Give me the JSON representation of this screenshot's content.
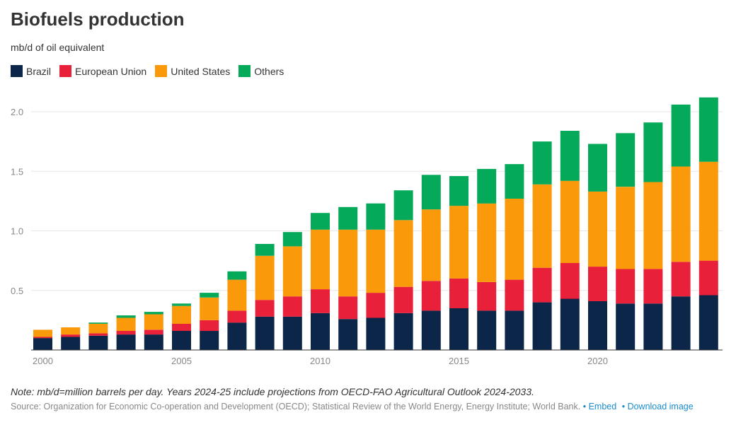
{
  "header": {
    "title": "Biofuels production",
    "subtitle": "mb/d of oil equivalent"
  },
  "footer": {
    "note": "Note: mb/d=million barrels per day. Years 2024-25 include projections from OECD-FAO Agricultural Outlook 2024-2033.",
    "source": "Source: Organization for Economic Co-operation and Development (OECD); Statistical Review of the World Energy, Energy Institute; World Bank.",
    "embed_label": "Embed",
    "download_label": "Download image",
    "separator": "•"
  },
  "chart_data": {
    "type": "bar",
    "stacked": true,
    "title": "Biofuels production",
    "subtitle": "mb/d of oil equivalent",
    "xlabel": "",
    "ylabel": "",
    "ylim": [
      0,
      2.2
    ],
    "yticks": [
      0.5,
      1.0,
      1.5,
      2.0
    ],
    "ytick_labels": [
      "0.5",
      "1.0",
      "1.5",
      "2.0"
    ],
    "xticks": [
      2000,
      2005,
      2010,
      2015,
      2020
    ],
    "grid": true,
    "legend_position": "top-left",
    "categories": [
      2000,
      2001,
      2002,
      2003,
      2004,
      2005,
      2006,
      2007,
      2008,
      2009,
      2010,
      2011,
      2012,
      2013,
      2014,
      2015,
      2016,
      2017,
      2018,
      2019,
      2020,
      2021,
      2022,
      2023,
      2024
    ],
    "series": [
      {
        "name": "Brazil",
        "color": "#0b2649",
        "values": [
          0.1,
          0.11,
          0.12,
          0.13,
          0.13,
          0.16,
          0.16,
          0.23,
          0.28,
          0.28,
          0.31,
          0.26,
          0.27,
          0.31,
          0.33,
          0.35,
          0.33,
          0.33,
          0.4,
          0.43,
          0.41,
          0.39,
          0.39,
          0.45,
          0.46
        ]
      },
      {
        "name": "European Union",
        "color": "#e8203a",
        "values": [
          0.01,
          0.02,
          0.02,
          0.03,
          0.04,
          0.06,
          0.09,
          0.1,
          0.14,
          0.17,
          0.2,
          0.19,
          0.21,
          0.22,
          0.25,
          0.25,
          0.24,
          0.26,
          0.29,
          0.3,
          0.29,
          0.29,
          0.29,
          0.29,
          0.29
        ]
      },
      {
        "name": "United States",
        "color": "#fa9a0a",
        "values": [
          0.06,
          0.06,
          0.08,
          0.11,
          0.13,
          0.15,
          0.19,
          0.26,
          0.37,
          0.42,
          0.5,
          0.56,
          0.53,
          0.56,
          0.6,
          0.61,
          0.66,
          0.68,
          0.7,
          0.69,
          0.63,
          0.69,
          0.73,
          0.8,
          0.83
        ]
      },
      {
        "name": "Others",
        "color": "#05a95a",
        "values": [
          0.0,
          0.0,
          0.01,
          0.02,
          0.02,
          0.02,
          0.04,
          0.07,
          0.1,
          0.12,
          0.14,
          0.19,
          0.22,
          0.25,
          0.29,
          0.25,
          0.29,
          0.29,
          0.36,
          0.42,
          0.4,
          0.45,
          0.5,
          0.52,
          0.54
        ]
      }
    ]
  }
}
